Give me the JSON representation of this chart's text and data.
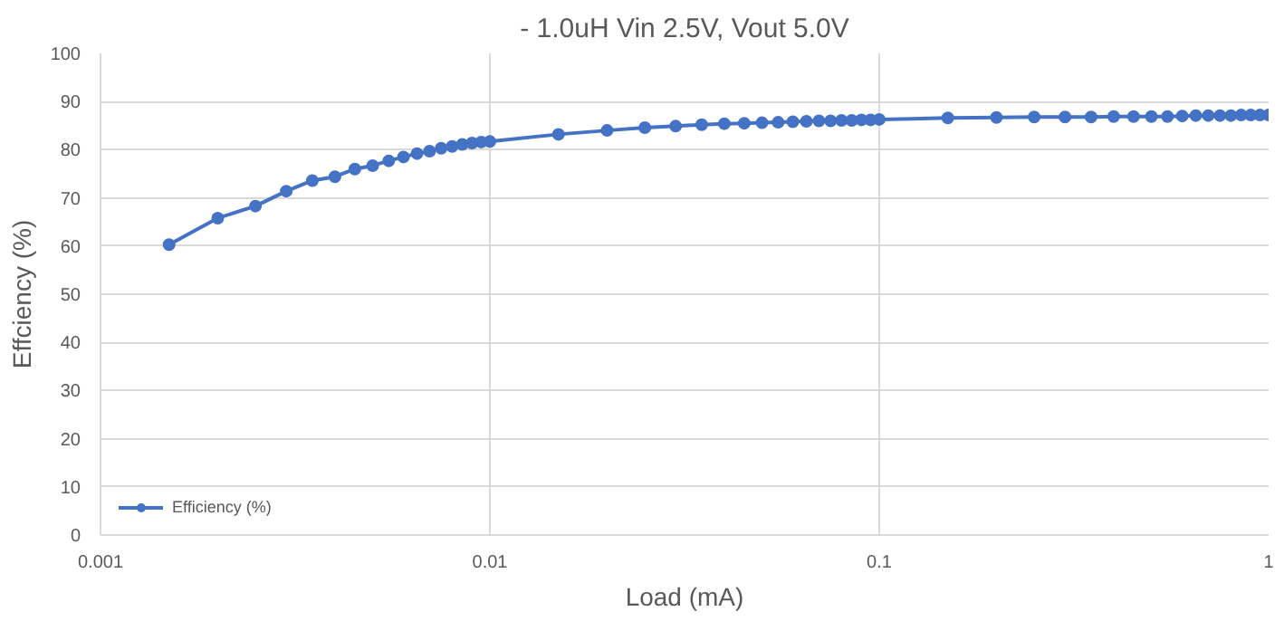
{
  "chart_data": {
    "type": "line",
    "title": "- 1.0uH Vin 2.5V, Vout 5.0V",
    "xlabel": "Load (mA)",
    "ylabel": "Effciency (%)",
    "log": "x",
    "grid": true,
    "legend": "bottom left",
    "marker": "circle",
    "line_style": "solid",
    "x": [
      0.0015,
      0.002,
      0.0025,
      0.003,
      0.0035,
      0.004,
      0.0045,
      0.005,
      0.0055,
      0.006,
      0.0065,
      0.007,
      0.0075,
      0.008,
      0.0085,
      0.009,
      0.0095,
      0.01,
      0.015,
      0.02,
      0.025,
      0.03,
      0.035,
      0.04,
      0.045,
      0.05,
      0.055,
      0.06,
      0.065,
      0.07,
      0.075,
      0.08,
      0.085,
      0.09,
      0.095,
      0.1,
      0.15,
      0.2,
      0.25,
      0.3,
      0.35,
      0.4,
      0.45,
      0.5,
      0.55,
      0.6,
      0.65,
      0.7,
      0.75,
      0.8,
      0.85,
      0.9,
      0.95,
      1
    ],
    "series": [
      {
        "name": "Efficiency (%)",
        "color": "#4472c4",
        "values": [
          60.3,
          65.8,
          68.3,
          71.4,
          73.6,
          74.4,
          76,
          76.7,
          77.7,
          78.5,
          79.2,
          79.7,
          80.3,
          80.7,
          81.1,
          81.4,
          81.6,
          81.7,
          83.2,
          84,
          84.6,
          84.9,
          85.2,
          85.4,
          85.5,
          85.6,
          85.7,
          85.8,
          85.9,
          86,
          86,
          86.1,
          86.1,
          86.2,
          86.2,
          86.3,
          86.6,
          86.7,
          86.8,
          86.8,
          86.8,
          86.9,
          86.9,
          86.9,
          86.9,
          87,
          87.1,
          87.1,
          87.1,
          87.1,
          87.2,
          87.2,
          87.2,
          87.2
        ]
      }
    ],
    "xlim": [
      0.001,
      1
    ],
    "xticks": [
      0.001,
      0.01,
      0.1,
      1
    ],
    "ylim": [
      0,
      100
    ],
    "yticks": [
      0,
      10,
      20,
      30,
      40,
      50,
      60,
      70,
      80,
      90,
      100
    ]
  }
}
